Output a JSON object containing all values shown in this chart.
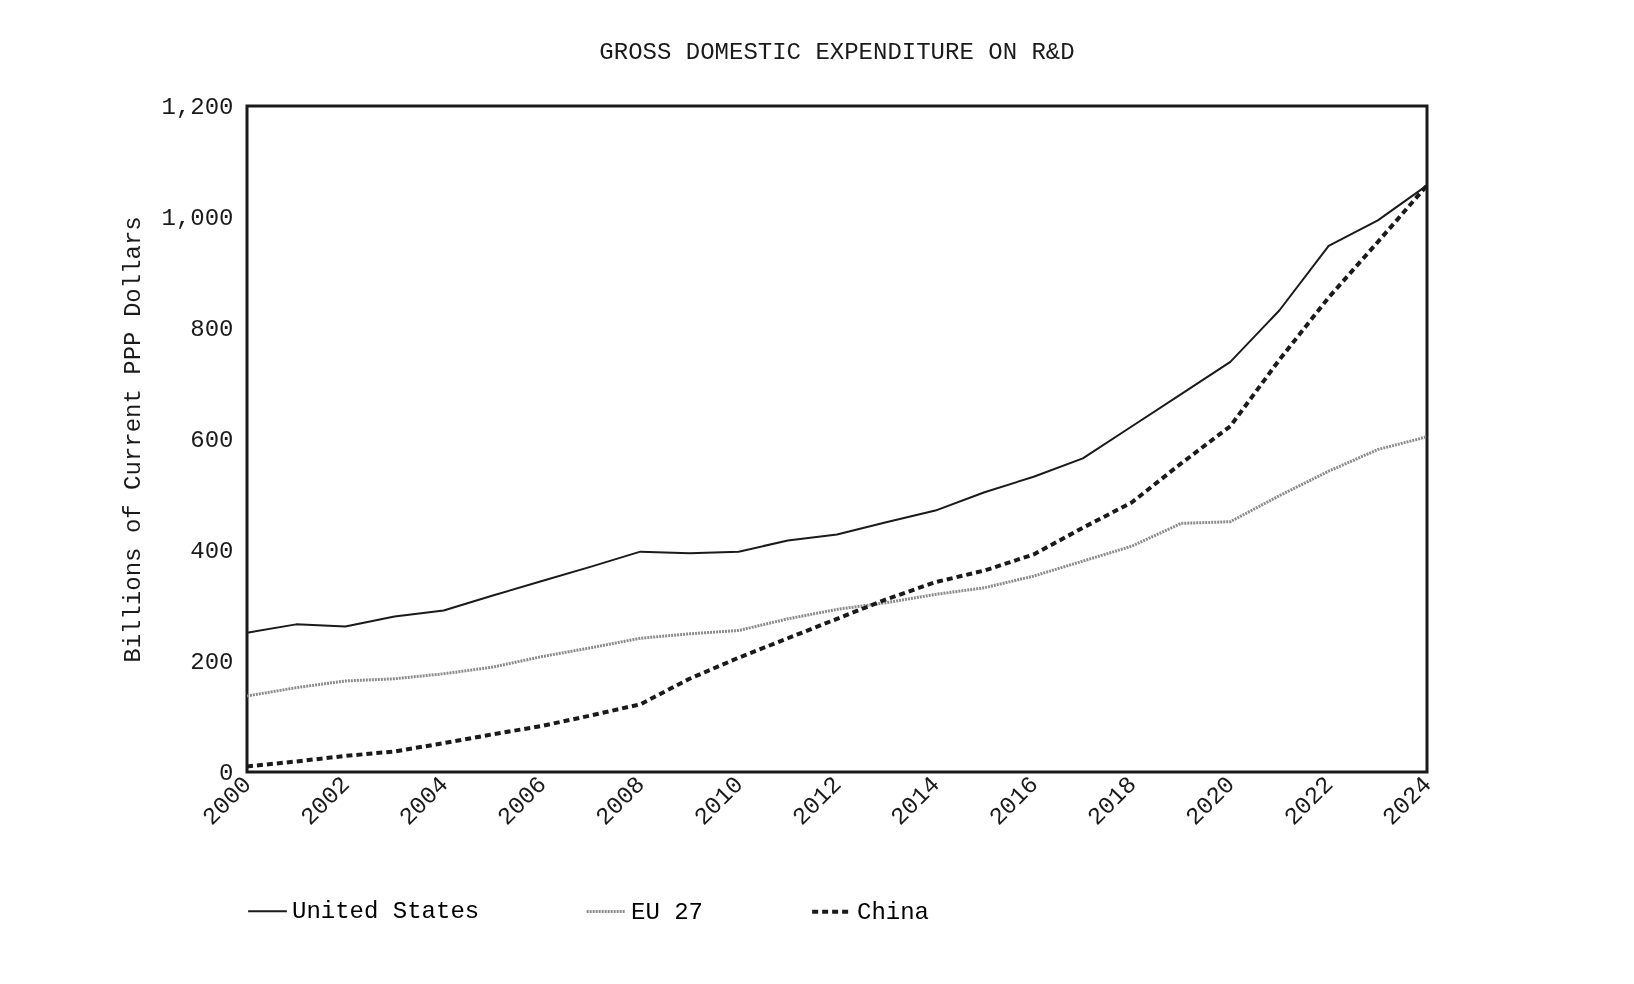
{
  "chart_data": {
    "type": "line",
    "title": "GROSS DOMESTIC EXPENDITURE ON R&D",
    "ylabel": "Billions of Current PPP Dollars",
    "x": [
      2000,
      2001,
      2002,
      2003,
      2004,
      2005,
      2006,
      2007,
      2008,
      2009,
      2010,
      2011,
      2012,
      2013,
      2014,
      2015,
      2016,
      2017,
      2018,
      2019,
      2020,
      2021,
      2022,
      2023,
      2024
    ],
    "series": [
      {
        "name": "United States",
        "color": "#1a1a1a",
        "line_style": "solid",
        "values": [
          251,
          266,
          262,
          280,
          291,
          318,
          344,
          370,
          397,
          394,
          397,
          417,
          428,
          450,
          471,
          504,
          532,
          565,
          623,
          681,
          739,
          832,
          948,
          994,
          1057
        ]
      },
      {
        "name": "EU 27",
        "color": "#8c8c8c",
        "line_style": "dotted",
        "values": [
          137,
          152,
          164,
          168,
          177,
          189,
          208,
          224,
          241,
          249,
          255,
          276,
          293,
          305,
          320,
          332,
          353,
          380,
          407,
          448,
          451,
          498,
          542,
          581,
          604
        ]
      },
      {
        "name": "China",
        "color": "#1a1a1a",
        "line_style": "dashed",
        "values": [
          10,
          19,
          29,
          37,
          52,
          68,
          83,
          102,
          122,
          168,
          206,
          241,
          276,
          311,
          342,
          363,
          392,
          440,
          486,
          556,
          623,
          743,
          855,
          955,
          1057
        ]
      }
    ],
    "xlim": [
      2000,
      2024
    ],
    "xticks": [
      2000,
      2002,
      2004,
      2006,
      2008,
      2010,
      2012,
      2014,
      2016,
      2018,
      2020,
      2022,
      2024
    ],
    "ylim": [
      0,
      1200
    ],
    "yticks": [
      0,
      {
        "value": 200,
        "label": "200"
      },
      400,
      600,
      800,
      {
        "value": 1000,
        "label": "1,000"
      },
      {
        "value": 1200,
        "label": "1,200"
      }
    ],
    "grid": false,
    "legend": "bottom",
    "marker": "none"
  }
}
